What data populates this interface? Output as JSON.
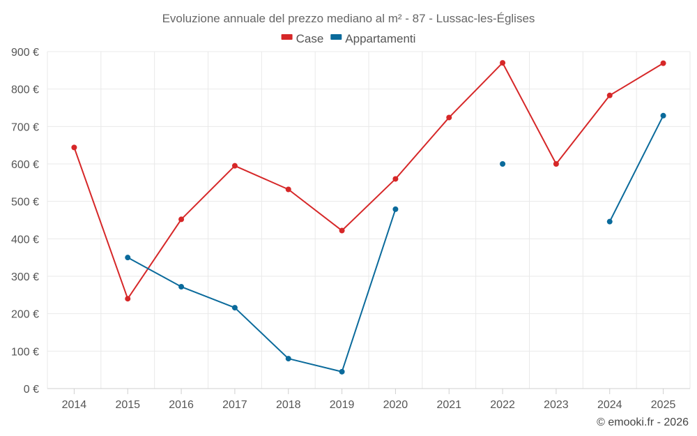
{
  "chart_data": {
    "type": "line",
    "title": "Evoluzione annuale del prezzo mediano al m² - 87 - Lussac-les-Églises",
    "categories": [
      "2014",
      "2015",
      "2016",
      "2017",
      "2018",
      "2019",
      "2020",
      "2021",
      "2022",
      "2023",
      "2024",
      "2025"
    ],
    "ylim": [
      0,
      900
    ],
    "yticks": [
      0,
      100,
      200,
      300,
      400,
      500,
      600,
      700,
      800,
      900
    ],
    "y_tick_suffix": " €",
    "grid": true,
    "legend_position": "top-center",
    "series": [
      {
        "name": "Case",
        "color": "#d62728",
        "values": [
          644,
          240,
          452,
          595,
          532,
          422,
          560,
          724,
          870,
          600,
          783,
          869
        ]
      },
      {
        "name": "Appartamenti",
        "color": "#0a6a9b",
        "values": [
          null,
          350,
          272,
          216,
          80,
          45,
          479,
          null,
          600,
          null,
          446,
          729
        ]
      }
    ]
  },
  "credit": "© emooki.fr - 2026"
}
